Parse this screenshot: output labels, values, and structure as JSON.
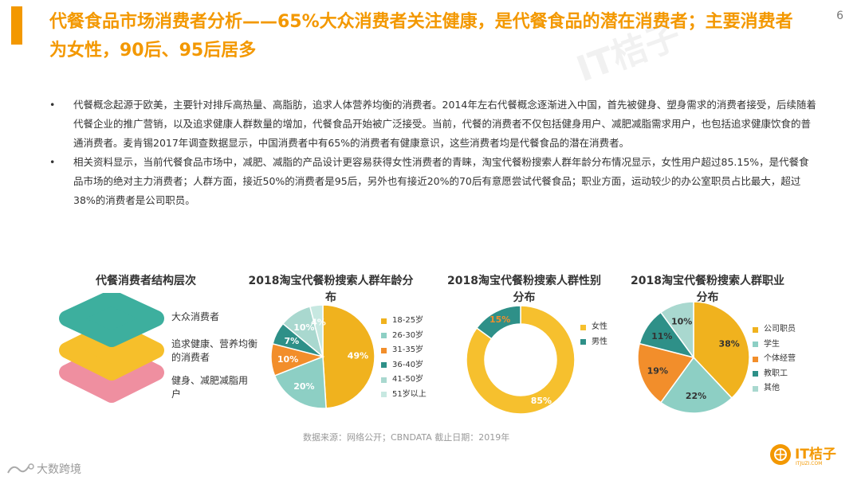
{
  "page": {
    "title": "代餐食品市场消费者分析——65%大众消费者关注健康，是代餐食品的潜在消费者；主要消费者为女性，90后、95后居多",
    "page_number": "6",
    "bullet_char": "•",
    "bullets": [
      "代餐概念起源于欧美，主要针对排斥高热量、高脂肪，追求人体营养均衡的消费者。2014年左右代餐概念逐渐进入中国，首先被健身、塑身需求的消费者接受，后续随着代餐企业的推广营销，以及追求健康人群数量的增加，代餐食品开始被广泛接受。当前，代餐的消费者不仅包括健身用户、减肥减脂需求用户，也包括追求健康饮食的普通消费者。麦肯锡2017年调查数据显示，中国消费者中有65%的消费者有健康意识，这些消费者均是代餐食品的潜在消费者。",
      "相关资料显示，当前代餐食品市场中，减肥、减脂的产品设计更容易获得女性消费者的青睐，淘宝代餐粉搜索人群年龄分布情况显示，女性用户超过85.15%，是代餐食品市场的绝对主力消费者；人群方面，接近50%的消费者是95后，另外也有接近20%的70后有意愿尝试代餐食品；职业方面，运动较少的办公室职员占比最大，超过38%的消费者是公司职员。"
    ],
    "source": "数据来源：网络公开；CBNDATA  截止日期：2019年",
    "brand": "IT桔子",
    "brand_sub": "ITJUZI.COM",
    "watermark": "大数跨境",
    "bg_watermark": "IT桔子"
  },
  "layers": {
    "title": "代餐消费者结构层次",
    "labels": [
      "大众消费者",
      "追求健康、营养均衡的消费者",
      "健身、减肥减脂用户"
    ],
    "colors": [
      "#3DAF9E",
      "#F6BF2B",
      "#EF8FA0"
    ]
  },
  "chart_data": [
    {
      "type": "pie",
      "title": "2018淘宝代餐粉搜索人群年龄分布",
      "categories": [
        "18-25岁",
        "26-30岁",
        "31-35岁",
        "36-40岁",
        "41-50岁",
        "51岁以上"
      ],
      "values": [
        49,
        20,
        10,
        7,
        10,
        4
      ],
      "labels": [
        "49%",
        "20%",
        "10%",
        "7%",
        "10%",
        "4%"
      ],
      "colors": [
        "#F0B21E",
        "#8DCFC4",
        "#F28E2B",
        "#2E9088",
        "#A9D8CF",
        "#C7E8E1"
      ],
      "label_colors": [
        "#ffffff",
        "#ffffff",
        "#ffffff",
        "#ffffff",
        "#ffffff",
        "#ffffff"
      ],
      "legend": "right"
    },
    {
      "type": "pie",
      "donut": true,
      "title": "2018淘宝代餐粉搜索人群性别分布",
      "categories": [
        "女性",
        "男性"
      ],
      "values": [
        85,
        15
      ],
      "labels": [
        "85%",
        "15%"
      ],
      "colors": [
        "#F6C02E",
        "#2E9088"
      ],
      "label_colors": [
        "#ffffff",
        "#F28E2B"
      ],
      "legend": "right"
    },
    {
      "type": "pie",
      "title": "2018淘宝代餐粉搜索人群职业分布",
      "categories": [
        "公司职员",
        "学生",
        "个体经营",
        "教职工",
        "其他"
      ],
      "values": [
        38,
        22,
        19,
        11,
        10
      ],
      "labels": [
        "38%",
        "22%",
        "19%",
        "11%",
        "10%"
      ],
      "colors": [
        "#F0B21E",
        "#8DCFC4",
        "#F28E2B",
        "#2E9088",
        "#A9D8CF"
      ],
      "label_colors": [
        "#333333",
        "#333333",
        "#333333",
        "#333333",
        "#333333"
      ],
      "legend": "right"
    }
  ]
}
